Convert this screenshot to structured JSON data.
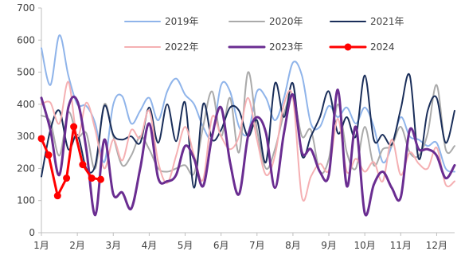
{
  "chart_data": {
    "type": "line",
    "title": "",
    "xlabel": "",
    "ylabel": "",
    "ylim": [
      0,
      700
    ],
    "y_ticks": [
      "0",
      "100",
      "200",
      "300",
      "400",
      "500",
      "600",
      "700"
    ],
    "x_ticks": [
      "1月",
      "2月",
      "3月",
      "4月",
      "5月",
      "6月",
      "7月",
      "8月",
      "9月",
      "10月",
      "11月",
      "12月"
    ],
    "x_range_months": [
      1,
      12.5
    ],
    "grid": false,
    "legend_position": "top",
    "series": [
      {
        "name": "2019年",
        "color": "#8fb4ea",
        "width": 2,
        "smooth": true,
        "x": [
          1.0,
          1.25,
          1.5,
          1.75,
          2.0,
          2.25,
          2.5,
          2.75,
          3.0,
          3.25,
          3.5,
          3.75,
          4.0,
          4.25,
          4.5,
          4.75,
          5.0,
          5.25,
          5.5,
          5.75,
          6.0,
          6.25,
          6.5,
          6.75,
          7.0,
          7.25,
          7.5,
          7.75,
          8.0,
          8.25,
          8.5,
          8.75,
          9.0,
          9.25,
          9.5,
          9.75,
          10.0,
          10.25,
          10.5,
          10.75,
          11.0,
          11.25,
          11.5,
          11.75,
          12.0,
          12.25,
          12.5
        ],
        "y": [
          575,
          460,
          615,
          490,
          400,
          395,
          340,
          220,
          400,
          425,
          340,
          380,
          420,
          350,
          440,
          480,
          430,
          400,
          330,
          300,
          460,
          440,
          330,
          310,
          440,
          420,
          350,
          420,
          530,
          490,
          340,
          330,
          395,
          360,
          390,
          340,
          390,
          330,
          220,
          270,
          360,
          300,
          290,
          270,
          280,
          200,
          190
        ]
      },
      {
        "name": "2020年",
        "color": "#aaaaaa",
        "width": 2,
        "smooth": true,
        "x": [
          1.0,
          1.25,
          1.5,
          1.75,
          2.0,
          2.25,
          2.5,
          2.75,
          3.0,
          3.25,
          3.5,
          3.75,
          4.0,
          4.25,
          4.5,
          4.75,
          5.0,
          5.25,
          5.5,
          5.75,
          6.0,
          6.25,
          6.5,
          6.75,
          7.0,
          7.25,
          7.5,
          7.75,
          8.0,
          8.25,
          8.5,
          8.75,
          9.0,
          9.25,
          9.5,
          9.75,
          10.0,
          10.25,
          10.5,
          10.75,
          11.0,
          11.25,
          11.5,
          11.75,
          12.0,
          12.25,
          12.5
        ],
        "y": [
          365,
          345,
          240,
          375,
          300,
          310,
          200,
          400,
          300,
          210,
          240,
          300,
          260,
          200,
          190,
          200,
          210,
          185,
          330,
          440,
          300,
          420,
          250,
          500,
          320,
          200,
          260,
          370,
          430,
          300,
          320,
          190,
          230,
          400,
          250,
          200,
          330,
          210,
          260,
          270,
          330,
          250,
          240,
          310,
          460,
          260,
          270
        ]
      },
      {
        "name": "2021年",
        "color": "#1a2e5a",
        "width": 2,
        "smooth": true,
        "x": [
          1.0,
          1.25,
          1.5,
          1.75,
          2.0,
          2.25,
          2.5,
          2.75,
          3.0,
          3.25,
          3.5,
          3.75,
          4.0,
          4.25,
          4.5,
          4.75,
          5.0,
          5.25,
          5.5,
          5.75,
          6.0,
          6.25,
          6.5,
          6.75,
          7.0,
          7.25,
          7.5,
          7.75,
          8.0,
          8.25,
          8.5,
          8.75,
          9.0,
          9.25,
          9.5,
          9.75,
          10.0,
          10.25,
          10.5,
          10.75,
          11.0,
          11.25,
          11.5,
          11.75,
          12.0,
          12.25,
          12.5
        ],
        "y": [
          175,
          320,
          380,
          260,
          305,
          200,
          210,
          395,
          305,
          290,
          300,
          280,
          390,
          280,
          400,
          285,
          405,
          140,
          400,
          290,
          320,
          390,
          380,
          300,
          350,
          220,
          465,
          360,
          465,
          240,
          300,
          360,
          440,
          310,
          360,
          300,
          490,
          290,
          305,
          275,
          385,
          490,
          230,
          380,
          420,
          280,
          380
        ]
      },
      {
        "name": "2022年",
        "color": "#f5b0b3",
        "width": 2,
        "smooth": true,
        "x": [
          1.0,
          1.25,
          1.5,
          1.75,
          2.0,
          2.25,
          2.5,
          2.75,
          3.0,
          3.25,
          3.5,
          3.75,
          4.0,
          4.25,
          4.5,
          4.75,
          5.0,
          5.25,
          5.5,
          5.75,
          6.0,
          6.25,
          6.5,
          6.75,
          7.0,
          7.25,
          7.5,
          7.75,
          8.0,
          8.25,
          8.5,
          8.75,
          9.0,
          9.25,
          9.5,
          9.75,
          10.0,
          10.25,
          10.5,
          10.75,
          11.0,
          11.25,
          11.5,
          11.75,
          12.0,
          12.25,
          12.5
        ],
        "y": [
          400,
          405,
          340,
          470,
          300,
          405,
          320,
          200,
          290,
          225,
          320,
          295,
          380,
          220,
          155,
          240,
          330,
          240,
          165,
          360,
          300,
          260,
          300,
          420,
          290,
          180,
          240,
          400,
          420,
          110,
          175,
          215,
          195,
          355,
          190,
          230,
          190,
          220,
          160,
          290,
          180,
          250,
          215,
          200,
          265,
          150,
          160
        ]
      },
      {
        "name": "2023年",
        "color": "#6a2d91",
        "width": 3,
        "smooth": true,
        "x": [
          1.0,
          1.25,
          1.5,
          1.75,
          2.0,
          2.25,
          2.5,
          2.75,
          3.0,
          3.25,
          3.5,
          3.75,
          4.0,
          4.25,
          4.5,
          4.75,
          5.0,
          5.25,
          5.5,
          5.75,
          6.0,
          6.25,
          6.5,
          6.75,
          7.0,
          7.25,
          7.5,
          7.75,
          8.0,
          8.25,
          8.5,
          8.75,
          9.0,
          9.25,
          9.5,
          9.75,
          10.0,
          10.25,
          10.5,
          10.75,
          11.0,
          11.25,
          11.5,
          11.75,
          12.0,
          12.25,
          12.5
        ],
        "y": [
          420,
          320,
          180,
          390,
          410,
          260,
          55,
          290,
          120,
          125,
          75,
          200,
          340,
          170,
          160,
          180,
          270,
          230,
          145,
          300,
          390,
          220,
          120,
          300,
          360,
          310,
          140,
          310,
          430,
          250,
          260,
          190,
          180,
          445,
          145,
          330,
          60,
          150,
          190,
          140,
          110,
          320,
          260,
          260,
          240,
          170,
          210
        ]
      },
      {
        "name": "2024",
        "color": "#ff0000",
        "width": 3,
        "smooth": false,
        "markers": true,
        "x": [
          1.0,
          1.2,
          1.45,
          1.7,
          1.9,
          2.15,
          2.4,
          2.65
        ],
        "y": [
          293,
          242,
          115,
          170,
          330,
          212,
          170,
          166
        ]
      }
    ]
  }
}
